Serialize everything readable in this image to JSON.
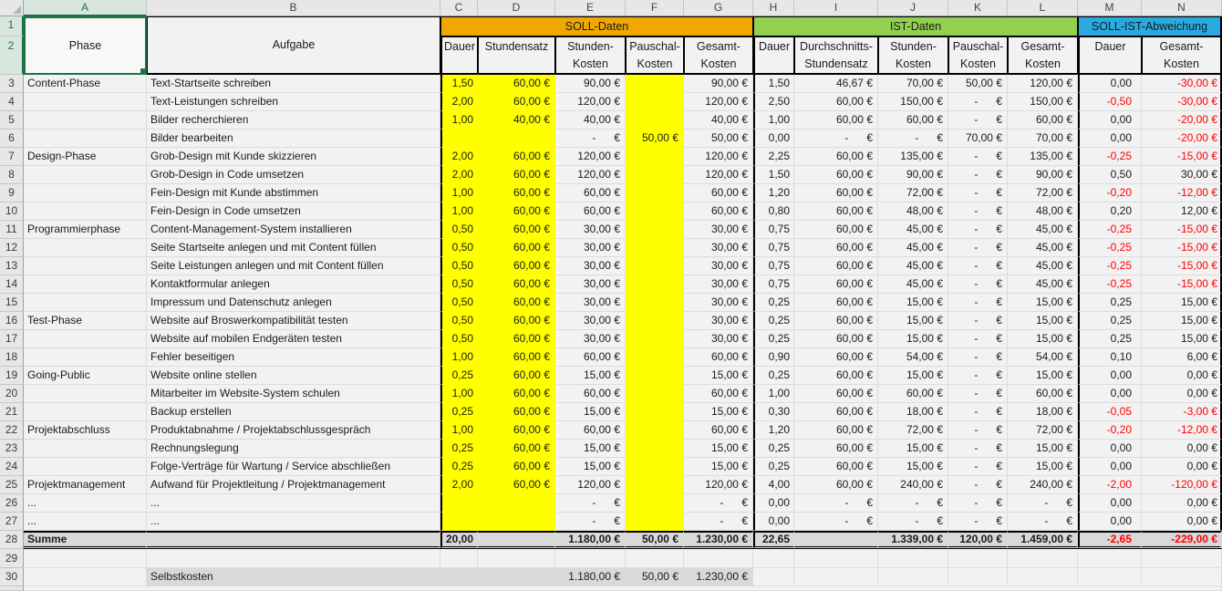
{
  "columns": [
    "A",
    "B",
    "C",
    "D",
    "E",
    "F",
    "G",
    "H",
    "I",
    "J",
    "K",
    "L",
    "M",
    "N"
  ],
  "gutter": {
    "r1": "1",
    "r2": "2",
    "sum": "28",
    "empty": "29",
    "selbst": "30"
  },
  "headers": {
    "phase": "Phase",
    "aufgabe": "Aufgabe"
  },
  "groups": {
    "soll": "SOLL-Daten",
    "ist": "IST-Daten",
    "abw": "SOLL-IST-Abweichung"
  },
  "subheaders": {
    "c": "Dauer",
    "d": "Stundensatz",
    "e": "Stunden-\nKosten",
    "f": "Pauschal-\nKosten",
    "g": "Gesamt-\nKosten",
    "h": "Dauer",
    "i": "Durchschnitts-\nStundensatz",
    "j": "Stunden-\nKosten",
    "k": "Pauschal-\nKosten",
    "l": "Gesamt-\nKosten",
    "m": "Dauer",
    "n": "Gesamt-\nKosten"
  },
  "colors": {
    "soll": "#F0A800",
    "ist": "#92D050",
    "abw": "#29ABE2",
    "input_yellow": "#FFFF00",
    "negative": "#FF0000",
    "sum_bg": "#D9D9D9"
  },
  "rows": [
    {
      "num": "3",
      "phase": "Content-Phase",
      "task": "Text-Startseite schreiben",
      "c": "1,50",
      "d": "60,00 €",
      "e": "90,00 €",
      "f": "",
      "g": "90,00 €",
      "h": "1,50",
      "i": "46,67 €",
      "j": "70,00 €",
      "k": "50,00 €",
      "l": "120,00 €",
      "m": "0,00",
      "n": "-30,00 €"
    },
    {
      "num": "4",
      "phase": "",
      "task": "Text-Leistungen schreiben",
      "c": "2,00",
      "d": "60,00 €",
      "e": "120,00 €",
      "f": "",
      "g": "120,00 €",
      "h": "2,50",
      "i": "60,00 €",
      "j": "150,00 €",
      "k": "-      €",
      "l": "150,00 €",
      "m": "-0,50",
      "n": "-30,00 €"
    },
    {
      "num": "5",
      "phase": "",
      "task": "Bilder recherchieren",
      "c": "1,00",
      "d": "40,00 €",
      "e": "40,00 €",
      "f": "",
      "g": "40,00 €",
      "h": "1,00",
      "i": "60,00 €",
      "j": "60,00 €",
      "k": "-      €",
      "l": "60,00 €",
      "m": "0,00",
      "n": "-20,00 €"
    },
    {
      "num": "6",
      "phase": "",
      "task": "Bilder bearbeiten",
      "c": "",
      "d": "",
      "e": "-      €",
      "f": "50,00 €",
      "g": "50,00 €",
      "h": "0,00",
      "i": "-      €",
      "j": "-      €",
      "k": "70,00 €",
      "l": "70,00 €",
      "m": "0,00",
      "n": "-20,00 €"
    },
    {
      "num": "7",
      "phase": "Design-Phase",
      "task": "Grob-Design mit Kunde skizzieren",
      "c": "2,00",
      "d": "60,00 €",
      "e": "120,00 €",
      "f": "",
      "g": "120,00 €",
      "h": "2,25",
      "i": "60,00 €",
      "j": "135,00 €",
      "k": "-      €",
      "l": "135,00 €",
      "m": "-0,25",
      "n": "-15,00 €"
    },
    {
      "num": "8",
      "phase": "",
      "task": "Grob-Design in Code umsetzen",
      "c": "2,00",
      "d": "60,00 €",
      "e": "120,00 €",
      "f": "",
      "g": "120,00 €",
      "h": "1,50",
      "i": "60,00 €",
      "j": "90,00 €",
      "k": "-      €",
      "l": "90,00 €",
      "m": "0,50",
      "n": "30,00 €"
    },
    {
      "num": "9",
      "phase": "",
      "task": "Fein-Design mit Kunde abstimmen",
      "c": "1,00",
      "d": "60,00 €",
      "e": "60,00 €",
      "f": "",
      "g": "60,00 €",
      "h": "1,20",
      "i": "60,00 €",
      "j": "72,00 €",
      "k": "-      €",
      "l": "72,00 €",
      "m": "-0,20",
      "n": "-12,00 €"
    },
    {
      "num": "10",
      "phase": "",
      "task": "Fein-Design in Code umsetzen",
      "c": "1,00",
      "d": "60,00 €",
      "e": "60,00 €",
      "f": "",
      "g": "60,00 €",
      "h": "0,80",
      "i": "60,00 €",
      "j": "48,00 €",
      "k": "-      €",
      "l": "48,00 €",
      "m": "0,20",
      "n": "12,00 €"
    },
    {
      "num": "11",
      "phase": "Programmierphase",
      "task": "Content-Management-System installieren",
      "c": "0,50",
      "d": "60,00 €",
      "e": "30,00 €",
      "f": "",
      "g": "30,00 €",
      "h": "0,75",
      "i": "60,00 €",
      "j": "45,00 €",
      "k": "-      €",
      "l": "45,00 €",
      "m": "-0,25",
      "n": "-15,00 €"
    },
    {
      "num": "12",
      "phase": "",
      "task": "Seite Startseite anlegen und mit Content füllen",
      "c": "0,50",
      "d": "60,00 €",
      "e": "30,00 €",
      "f": "",
      "g": "30,00 €",
      "h": "0,75",
      "i": "60,00 €",
      "j": "45,00 €",
      "k": "-      €",
      "l": "45,00 €",
      "m": "-0,25",
      "n": "-15,00 €"
    },
    {
      "num": "13",
      "phase": "",
      "task": "Seite Leistungen anlegen und mit Content füllen",
      "c": "0,50",
      "d": "60,00 €",
      "e": "30,00 €",
      "f": "",
      "g": "30,00 €",
      "h": "0,75",
      "i": "60,00 €",
      "j": "45,00 €",
      "k": "-      €",
      "l": "45,00 €",
      "m": "-0,25",
      "n": "-15,00 €"
    },
    {
      "num": "14",
      "phase": "",
      "task": "Kontaktformular anlegen",
      "c": "0,50",
      "d": "60,00 €",
      "e": "30,00 €",
      "f": "",
      "g": "30,00 €",
      "h": "0,75",
      "i": "60,00 €",
      "j": "45,00 €",
      "k": "-      €",
      "l": "45,00 €",
      "m": "-0,25",
      "n": "-15,00 €"
    },
    {
      "num": "15",
      "phase": "",
      "task": "Impressum und Datenschutz anlegen",
      "c": "0,50",
      "d": "60,00 €",
      "e": "30,00 €",
      "f": "",
      "g": "30,00 €",
      "h": "0,25",
      "i": "60,00 €",
      "j": "15,00 €",
      "k": "-      €",
      "l": "15,00 €",
      "m": "0,25",
      "n": "15,00 €"
    },
    {
      "num": "16",
      "phase": "Test-Phase",
      "task": "Website auf Broswerkompatibilität testen",
      "c": "0,50",
      "d": "60,00 €",
      "e": "30,00 €",
      "f": "",
      "g": "30,00 €",
      "h": "0,25",
      "i": "60,00 €",
      "j": "15,00 €",
      "k": "-      €",
      "l": "15,00 €",
      "m": "0,25",
      "n": "15,00 €"
    },
    {
      "num": "17",
      "phase": "",
      "task": "Website auf mobilen Endgeräten testen",
      "c": "0,50",
      "d": "60,00 €",
      "e": "30,00 €",
      "f": "",
      "g": "30,00 €",
      "h": "0,25",
      "i": "60,00 €",
      "j": "15,00 €",
      "k": "-      €",
      "l": "15,00 €",
      "m": "0,25",
      "n": "15,00 €"
    },
    {
      "num": "18",
      "phase": "",
      "task": "Fehler beseitigen",
      "c": "1,00",
      "d": "60,00 €",
      "e": "60,00 €",
      "f": "",
      "g": "60,00 €",
      "h": "0,90",
      "i": "60,00 €",
      "j": "54,00 €",
      "k": "-      €",
      "l": "54,00 €",
      "m": "0,10",
      "n": "6,00 €"
    },
    {
      "num": "19",
      "phase": "Going-Public",
      "task": "Website online stellen",
      "c": "0,25",
      "d": "60,00 €",
      "e": "15,00 €",
      "f": "",
      "g": "15,00 €",
      "h": "0,25",
      "i": "60,00 €",
      "j": "15,00 €",
      "k": "-      €",
      "l": "15,00 €",
      "m": "0,00",
      "n": "0,00 €"
    },
    {
      "num": "20",
      "phase": "",
      "task": "Mitarbeiter im Website-System schulen",
      "c": "1,00",
      "d": "60,00 €",
      "e": "60,00 €",
      "f": "",
      "g": "60,00 €",
      "h": "1,00",
      "i": "60,00 €",
      "j": "60,00 €",
      "k": "-      €",
      "l": "60,00 €",
      "m": "0,00",
      "n": "0,00 €"
    },
    {
      "num": "21",
      "phase": "",
      "task": "Backup erstellen",
      "c": "0,25",
      "d": "60,00 €",
      "e": "15,00 €",
      "f": "",
      "g": "15,00 €",
      "h": "0,30",
      "i": "60,00 €",
      "j": "18,00 €",
      "k": "-      €",
      "l": "18,00 €",
      "m": "-0,05",
      "n": "-3,00 €"
    },
    {
      "num": "22",
      "phase": "Projektabschluss",
      "task": "Produktabnahme / Projektabschlussgespräch",
      "c": "1,00",
      "d": "60,00 €",
      "e": "60,00 €",
      "f": "",
      "g": "60,00 €",
      "h": "1,20",
      "i": "60,00 €",
      "j": "72,00 €",
      "k": "-      €",
      "l": "72,00 €",
      "m": "-0,20",
      "n": "-12,00 €"
    },
    {
      "num": "23",
      "phase": "",
      "task": "Rechnungslegung",
      "c": "0,25",
      "d": "60,00 €",
      "e": "15,00 €",
      "f": "",
      "g": "15,00 €",
      "h": "0,25",
      "i": "60,00 €",
      "j": "15,00 €",
      "k": "-      €",
      "l": "15,00 €",
      "m": "0,00",
      "n": "0,00 €"
    },
    {
      "num": "24",
      "phase": "",
      "task": "Folge-Verträge für Wartung / Service abschließen",
      "c": "0,25",
      "d": "60,00 €",
      "e": "15,00 €",
      "f": "",
      "g": "15,00 €",
      "h": "0,25",
      "i": "60,00 €",
      "j": "15,00 €",
      "k": "-      €",
      "l": "15,00 €",
      "m": "0,00",
      "n": "0,00 €"
    },
    {
      "num": "25",
      "phase": "Projektmanagement",
      "task": "Aufwand für Projektleitung / Projektmanagement",
      "c": "2,00",
      "d": "60,00 €",
      "e": "120,00 €",
      "f": "",
      "g": "120,00 €",
      "h": "4,00",
      "i": "60,00 €",
      "j": "240,00 €",
      "k": "-      €",
      "l": "240,00 €",
      "m": "-2,00",
      "n": "-120,00 €"
    },
    {
      "num": "26",
      "phase": "...",
      "task": "...",
      "c": "",
      "d": "",
      "e": "-      €",
      "f": "",
      "g": "-      €",
      "h": "0,00",
      "i": "-      €",
      "j": "-      €",
      "k": "-      €",
      "l": "-      €",
      "m": "0,00",
      "n": "0,00 €"
    },
    {
      "num": "27",
      "phase": "...",
      "task": "...",
      "c": "",
      "d": "",
      "e": "-      €",
      "f": "",
      "g": "-      €",
      "h": "0,00",
      "i": "-      €",
      "j": "-      €",
      "k": "-      €",
      "l": "-      €",
      "m": "0,00",
      "n": "0,00 €"
    }
  ],
  "summe": {
    "label": "Summe",
    "c": "20,00",
    "d": "",
    "e": "1.180,00 €",
    "f": "50,00 €",
    "g": "1.230,00 €",
    "h": "22,65",
    "i": "",
    "j": "1.339,00 €",
    "k": "120,00 €",
    "l": "1.459,00 €",
    "m": "-2,65",
    "n": "-229,00 €"
  },
  "selbstkosten": {
    "label": "Selbstkosten",
    "e": "1.180,00 €",
    "f": "50,00 €",
    "g": "1.230,00 €"
  }
}
